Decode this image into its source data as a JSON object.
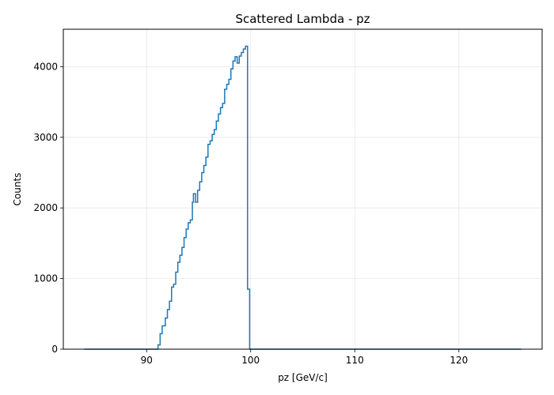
{
  "chart_data": {
    "type": "histogram",
    "title": "Scattered Lambda - pz",
    "xlabel": "pz [GeV/c]",
    "ylabel": "Counts",
    "xlim": [
      82.0,
      128.0
    ],
    "ylim": [
      0,
      4530
    ],
    "xticks": [
      90,
      100,
      110,
      120
    ],
    "yticks": [
      0,
      1000,
      2000,
      3000,
      4000
    ],
    "grid": true,
    "line_color": "#1f77b4",
    "range": [
      84.0,
      126.0
    ],
    "points": [
      [
        84.0,
        0
      ],
      [
        91.1,
        0
      ],
      [
        91.1,
        60
      ],
      [
        91.3,
        60
      ],
      [
        91.3,
        220
      ],
      [
        91.5,
        220
      ],
      [
        91.5,
        330
      ],
      [
        91.7,
        330
      ],
      [
        91.7,
        330
      ],
      [
        91.8,
        330
      ],
      [
        91.8,
        440
      ],
      [
        92.0,
        440
      ],
      [
        92.0,
        560
      ],
      [
        92.2,
        560
      ],
      [
        92.2,
        680
      ],
      [
        92.4,
        680
      ],
      [
        92.4,
        880
      ],
      [
        92.6,
        880
      ],
      [
        92.6,
        920
      ],
      [
        92.8,
        920
      ],
      [
        92.8,
        1090
      ],
      [
        93.0,
        1090
      ],
      [
        93.0,
        1230
      ],
      [
        93.2,
        1230
      ],
      [
        93.2,
        1330
      ],
      [
        93.4,
        1330
      ],
      [
        93.4,
        1440
      ],
      [
        93.6,
        1440
      ],
      [
        93.6,
        1580
      ],
      [
        93.8,
        1580
      ],
      [
        93.8,
        1700
      ],
      [
        94.0,
        1700
      ],
      [
        94.0,
        1790
      ],
      [
        94.2,
        1790
      ],
      [
        94.2,
        1830
      ],
      [
        94.4,
        1830
      ],
      [
        94.4,
        2080
      ],
      [
        94.5,
        2080
      ],
      [
        94.5,
        2200
      ],
      [
        94.7,
        2200
      ],
      [
        94.7,
        2080
      ],
      [
        94.9,
        2080
      ],
      [
        94.9,
        2250
      ],
      [
        95.1,
        2250
      ],
      [
        95.1,
        2370
      ],
      [
        95.3,
        2370
      ],
      [
        95.3,
        2500
      ],
      [
        95.5,
        2500
      ],
      [
        95.5,
        2600
      ],
      [
        95.7,
        2600
      ],
      [
        95.7,
        2720
      ],
      [
        95.9,
        2720
      ],
      [
        95.9,
        2900
      ],
      [
        96.1,
        2900
      ],
      [
        96.1,
        2950
      ],
      [
        96.3,
        2950
      ],
      [
        96.3,
        3040
      ],
      [
        96.5,
        3040
      ],
      [
        96.5,
        3110
      ],
      [
        96.7,
        3110
      ],
      [
        96.7,
        3230
      ],
      [
        96.9,
        3230
      ],
      [
        96.9,
        3330
      ],
      [
        97.1,
        3330
      ],
      [
        97.1,
        3420
      ],
      [
        97.3,
        3420
      ],
      [
        97.3,
        3480
      ],
      [
        97.5,
        3480
      ],
      [
        97.5,
        3680
      ],
      [
        97.7,
        3680
      ],
      [
        97.7,
        3750
      ],
      [
        97.9,
        3750
      ],
      [
        97.9,
        3820
      ],
      [
        98.1,
        3820
      ],
      [
        98.1,
        3970
      ],
      [
        98.3,
        3970
      ],
      [
        98.3,
        4080
      ],
      [
        98.5,
        4080
      ],
      [
        98.5,
        4140
      ],
      [
        98.7,
        4140
      ],
      [
        98.7,
        4050
      ],
      [
        98.9,
        4050
      ],
      [
        98.9,
        4150
      ],
      [
        99.1,
        4150
      ],
      [
        99.1,
        4200
      ],
      [
        99.3,
        4200
      ],
      [
        99.3,
        4250
      ],
      [
        99.5,
        4250
      ],
      [
        99.5,
        4290
      ],
      [
        99.7,
        4290
      ],
      [
        99.7,
        850
      ],
      [
        99.9,
        850
      ],
      [
        99.9,
        0
      ],
      [
        126.0,
        0
      ]
    ]
  }
}
